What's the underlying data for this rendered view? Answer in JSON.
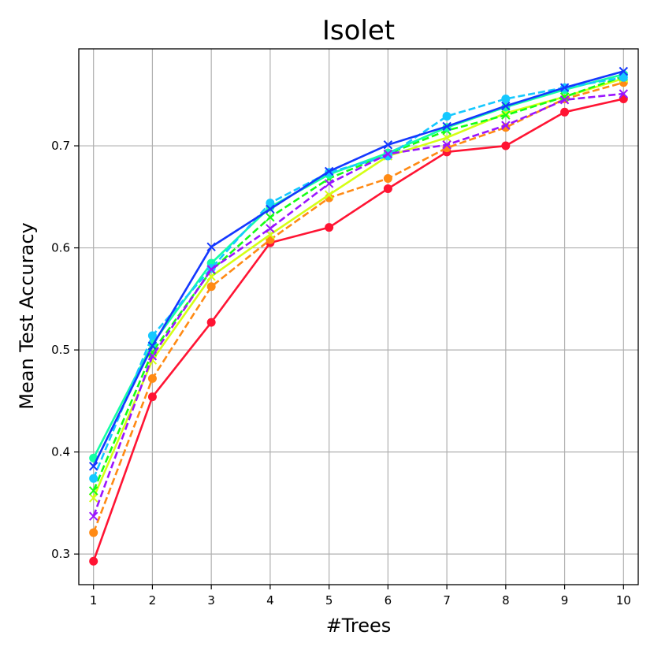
{
  "chart_data": {
    "type": "line",
    "title": "Isolet",
    "xlabel": "#Trees",
    "ylabel": "Mean Test Accuracy",
    "x": [
      1,
      2,
      3,
      4,
      5,
      6,
      7,
      8,
      9,
      10
    ],
    "xlim": [
      0.75,
      10.25
    ],
    "ylim": [
      0.27,
      0.795
    ],
    "xticks": [
      1,
      2,
      3,
      4,
      5,
      6,
      7,
      8,
      9,
      10
    ],
    "yticks": [
      0.3,
      0.4,
      0.5,
      0.6,
      0.7
    ],
    "ytick_labels": [
      "0.3",
      "0.4",
      "0.5",
      "0.6",
      "0.7"
    ],
    "grid": true,
    "series": [
      {
        "color": "#ff1433",
        "dash": "solid",
        "marker": "circle",
        "values": [
          0.293,
          0.454,
          0.527,
          0.605,
          0.62,
          0.658,
          0.694,
          0.7,
          0.733,
          0.746
        ]
      },
      {
        "color": "#ff8a14",
        "dash": "dashed",
        "marker": "circle",
        "values": [
          0.321,
          0.472,
          0.562,
          0.608,
          0.649,
          0.668,
          0.698,
          0.718,
          0.746,
          0.762
        ]
      },
      {
        "color": "#d4ff14",
        "dash": "solid",
        "marker": "x",
        "values": [
          0.355,
          0.49,
          0.572,
          0.613,
          0.652,
          0.69,
          0.708,
          0.732,
          0.748,
          0.766
        ]
      },
      {
        "color": "#14ff14",
        "dash": "dashed",
        "marker": "x",
        "values": [
          0.362,
          0.498,
          0.578,
          0.63,
          0.668,
          0.692,
          0.715,
          0.73,
          0.748,
          0.768
        ]
      },
      {
        "color": "#14ffa5",
        "dash": "solid",
        "marker": "circle",
        "values": [
          0.394,
          0.506,
          0.585,
          0.64,
          0.672,
          0.693,
          0.718,
          0.738,
          0.755,
          0.77
        ]
      },
      {
        "color": "#14c8ff",
        "dash": "dashed",
        "marker": "circle",
        "values": [
          0.374,
          0.514,
          0.58,
          0.644,
          0.674,
          0.69,
          0.729,
          0.746,
          0.757,
          0.767
        ]
      },
      {
        "color": "#1438ff",
        "dash": "solid",
        "marker": "x",
        "values": [
          0.386,
          0.504,
          0.601,
          0.638,
          0.675,
          0.701,
          0.719,
          0.739,
          0.757,
          0.773
        ]
      },
      {
        "color": "#9a14ff",
        "dash": "dashed",
        "marker": "x",
        "values": [
          0.337,
          0.494,
          0.579,
          0.619,
          0.663,
          0.692,
          0.701,
          0.72,
          0.745,
          0.751
        ]
      }
    ]
  }
}
